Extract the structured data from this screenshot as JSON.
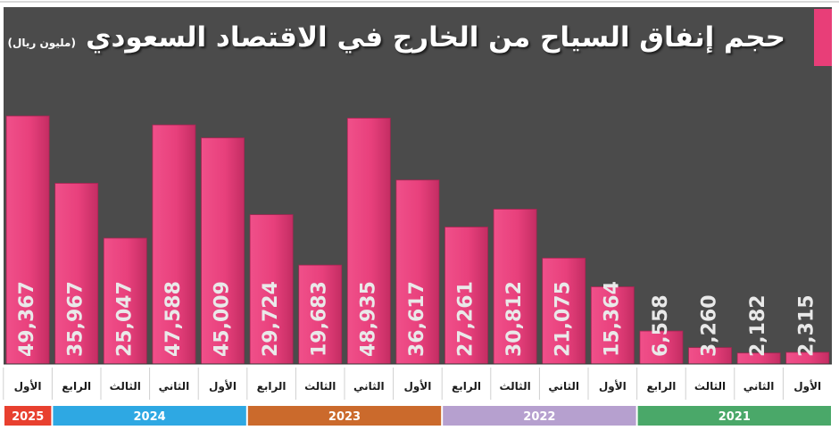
{
  "chart_data": {
    "type": "bar",
    "title": "حجم إنفاق السياح من الخارج في الاقتصاد السعودي",
    "unit": "(مليون ريال)",
    "categories": [
      "الأول",
      "الثاني",
      "الثالث",
      "الرابع",
      "الأول",
      "الثاني",
      "الثالث",
      "الرابع",
      "الأول",
      "الثاني",
      "الثالث",
      "الرابع",
      "الأول",
      "الثاني",
      "الثالث",
      "الرابع",
      "الأول"
    ],
    "values": [
      2315,
      2182,
      3260,
      6558,
      15364,
      21075,
      30812,
      27261,
      36617,
      48935,
      19683,
      29724,
      45009,
      47588,
      25047,
      35967,
      49367
    ],
    "value_labels": [
      "2,315",
      "2,182",
      "3,260",
      "6,558",
      "15,364",
      "21,075",
      "30,812",
      "27,261",
      "36,617",
      "48,935",
      "19,683",
      "29,724",
      "45,009",
      "47,588",
      "25,047",
      "35,967",
      "49,367"
    ],
    "year_groups": [
      {
        "label": "2021",
        "start": 0,
        "count": 4,
        "color": "#4aa869"
      },
      {
        "label": "2022",
        "start": 4,
        "count": 4,
        "color": "#b6a0cf"
      },
      {
        "label": "2023",
        "start": 8,
        "count": 4,
        "color": "#cb6a2c"
      },
      {
        "label": "2024",
        "start": 12,
        "count": 4,
        "color": "#2ea8e3"
      },
      {
        "label": "2025",
        "start": 16,
        "count": 1,
        "color": "#e8402f"
      }
    ],
    "ylim": [
      0,
      52000
    ],
    "direction": "right-to-left",
    "bar_color": "#e8407c",
    "background_color": "#4b4b4b"
  }
}
